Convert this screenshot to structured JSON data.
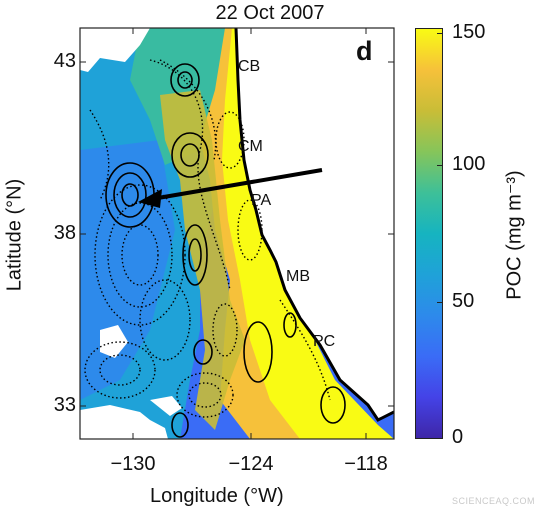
{
  "title": "22 Oct 2007",
  "panel_label": "d",
  "axes": {
    "xlabel": "Longitude (°W)",
    "ylabel": "Latitude (°N)",
    "x_ticks": [
      "−130",
      "−124",
      "−118"
    ],
    "y_ticks": [
      "43",
      "38",
      "33"
    ]
  },
  "colorbar": {
    "label": "POC (mg m⁻³)",
    "ticks": [
      "150",
      "100",
      "50",
      "0"
    ],
    "range": [
      0,
      150
    ],
    "colormap": "parula"
  },
  "places": [
    {
      "code": "CB"
    },
    {
      "code": "CM"
    },
    {
      "code": "PA"
    },
    {
      "code": "MB"
    },
    {
      "code": "PC"
    }
  ],
  "colors": {
    "ocean_offshore": "#3a6cf6",
    "ocean_mid": "#1fa2d8",
    "coastal_band": "#f6c13a",
    "nearshore": "#f9fb14",
    "cloud_mask": "#ffffff",
    "contour": "#000000"
  },
  "watermark": "SCIENCEAQ.COM"
}
